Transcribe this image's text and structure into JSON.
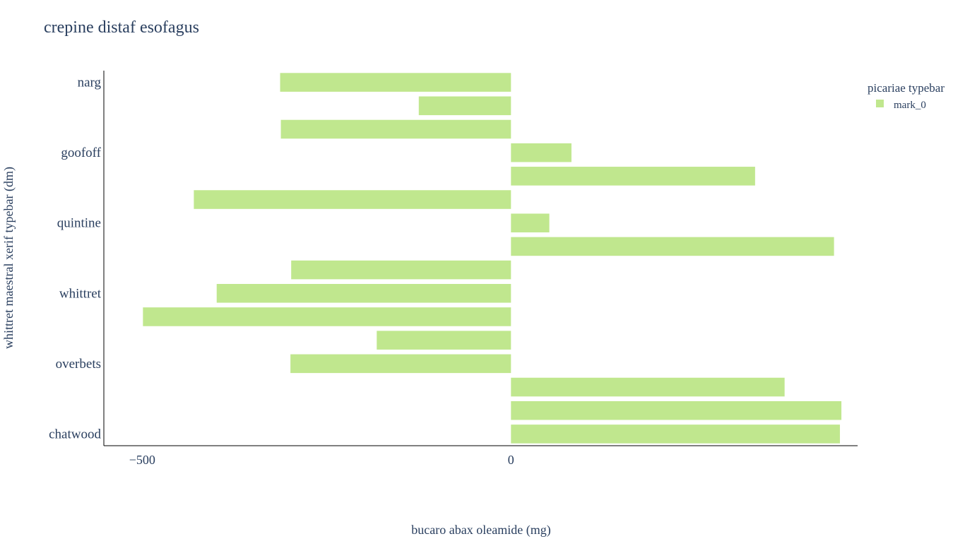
{
  "chart_data": {
    "type": "bar",
    "orientation": "horizontal",
    "title": "crepine distaf esofagus",
    "xlabel": "bucaro abax oleamide (mg)",
    "ylabel": "whittret maestral xerif typebar (dm)",
    "xlim": [
      -552,
      470
    ],
    "x_ticks": [
      {
        "value": -500,
        "label": "−500"
      },
      {
        "value": 0,
        "label": "0"
      }
    ],
    "y_tick_labels": [
      "narg",
      "goofoff",
      "quintine",
      "whittret",
      "overbets",
      "chatwood"
    ],
    "legend": {
      "title": "picariae typebar",
      "placement": "top-right"
    },
    "grid": false,
    "bar_color": "#c0e78e",
    "series": [
      {
        "name": "mark_0",
        "values": [
          -313,
          -125,
          -312,
          82,
          331,
          -430,
          52,
          438,
          -298,
          -399,
          -499,
          -182,
          -299,
          371,
          448,
          446
        ]
      }
    ]
  }
}
